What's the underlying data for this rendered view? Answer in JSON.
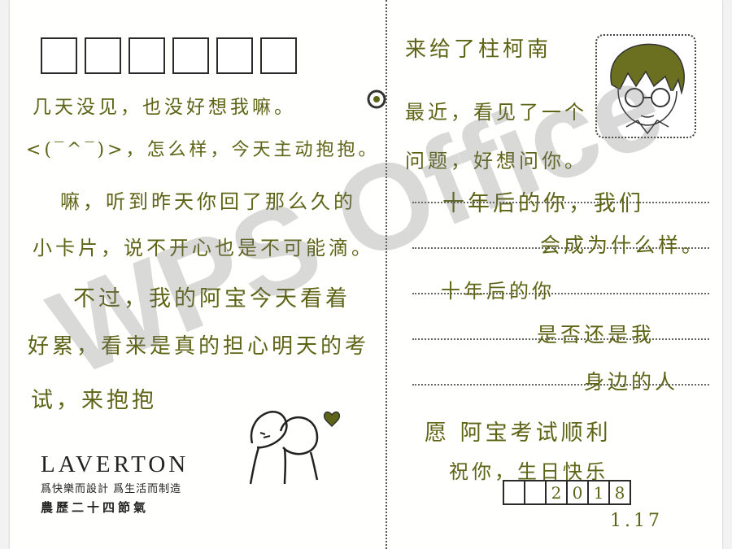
{
  "left_message": {
    "lines": [
      "几天没见，也没好想我嘛。",
      "<(‾^‾)>，怎么样，今天主动抱抱。",
      "嘛，听到昨天你回了那么久的",
      "小卡片，说不开心也是不可能滴。",
      "不过，我的阿宝今天看着",
      "好累，看来是真的担心明天的考",
      "试，来抱抱"
    ]
  },
  "right_message": {
    "lines": [
      "来给了柱柯南",
      "最近，看见了一个",
      "问题，好想问你。",
      "十年后的你，我们",
      "会成为什么样。",
      "十年后的你",
      "是否还是我",
      "身边的人",
      "愿 阿宝考试顺利",
      "祝你，生日快乐"
    ]
  },
  "logo": {
    "name": "LAVERTON",
    "tagline": "爲快樂而設計  爲生活而制造",
    "series": "農歷二十四節氣"
  },
  "date": {
    "boxes": [
      "",
      "",
      "2",
      "0",
      "1",
      "8"
    ],
    "day": "1.17"
  },
  "watermark": "WPS Office",
  "colors": {
    "ink": "#5e6416",
    "print": "#222222"
  }
}
